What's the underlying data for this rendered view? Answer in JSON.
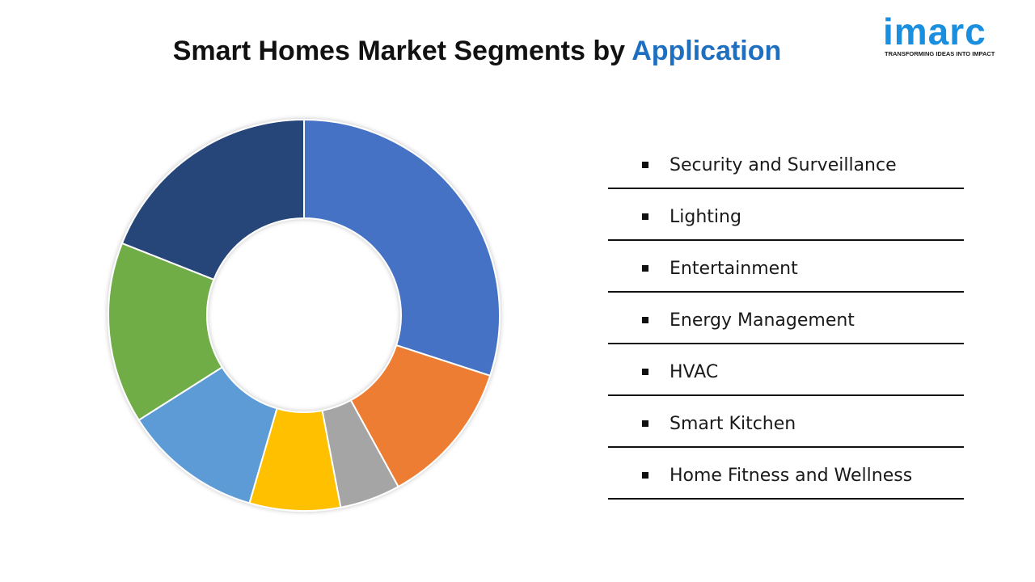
{
  "header": {
    "title_prefix": "Smart Homes Market Segments by ",
    "title_accent": "Application"
  },
  "logo": {
    "word": "imarc",
    "tagline": "TRANSFORMING IDEAS INTO IMPACT"
  },
  "chart_data": {
    "type": "pie",
    "title": "Smart Homes Market Segments by Application",
    "donut": true,
    "categories": [
      "Security and Surveillance",
      "Lighting",
      "Entertainment",
      "Energy Management",
      "HVAC",
      "Smart Kitchen",
      "Home Fitness and Wellness"
    ],
    "values": [
      30,
      12,
      5,
      7.5,
      11.5,
      15,
      19
    ],
    "colors": [
      "#4472c4",
      "#ed7d31",
      "#a5a5a5",
      "#ffc000",
      "#5b9bd5",
      "#70ad47",
      "#264478"
    ],
    "legend_placement": "right"
  }
}
